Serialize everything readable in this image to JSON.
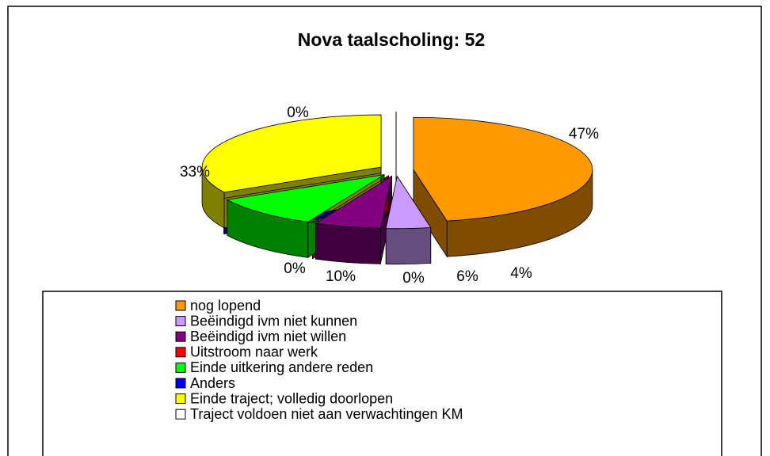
{
  "chart_data": {
    "type": "pie3d",
    "title": "Nova taalscholing: 52",
    "categories": [
      "nog lopend",
      "Beëindigd ivm niet kunnen",
      "Beëindigd ivm niet willen",
      "Uitstroom naar werk",
      "Einde uitkering andere reden",
      "Anders",
      "Einde traject; volledig doorlopen",
      "Traject voldoen niet aan verwachtingen KM"
    ],
    "values": [
      47,
      4,
      6,
      0,
      10,
      0,
      33,
      0
    ],
    "value_labels": [
      "47%",
      "4%",
      "6%",
      "0%",
      "10%",
      "0%",
      "33%",
      "0%"
    ],
    "colors": [
      "#FF9900",
      "#CC99FF",
      "#800080",
      "#FF0000",
      "#00FF00",
      "#0000FF",
      "#FFFF00",
      "#FFFFFF"
    ]
  }
}
